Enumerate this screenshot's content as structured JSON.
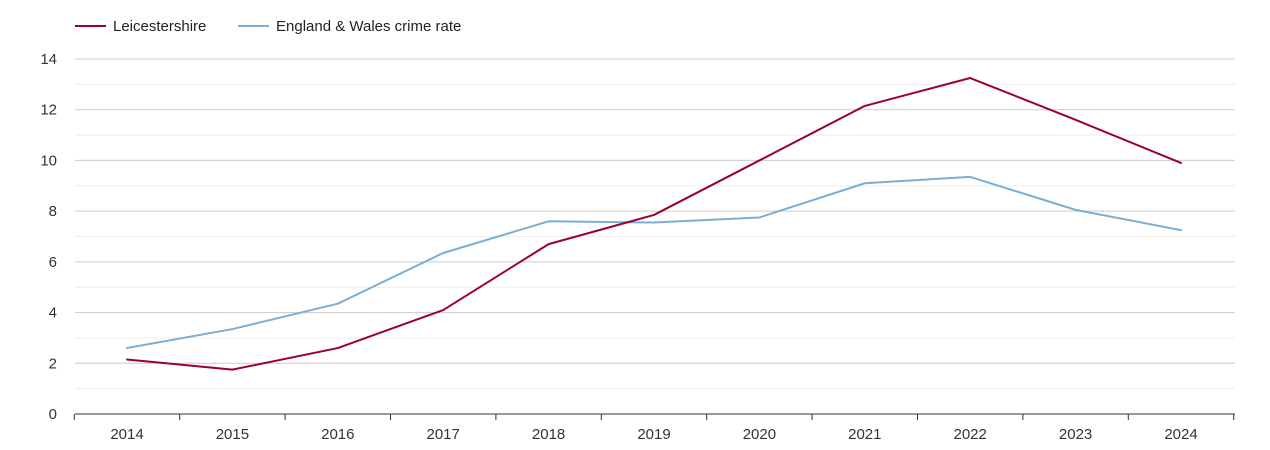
{
  "chart_data": {
    "type": "line",
    "title": "",
    "xlabel": "",
    "ylabel": "",
    "x": [
      2014,
      2015,
      2016,
      2017,
      2018,
      2019,
      2020,
      2021,
      2022,
      2023,
      2024
    ],
    "x_tick_labels": [
      "2014",
      "2015",
      "2016",
      "2017",
      "2018",
      "2019",
      "2020",
      "2021",
      "2022",
      "2023",
      "2024"
    ],
    "ylim": [
      0,
      14
    ],
    "y_ticks": [
      0,
      2,
      4,
      6,
      8,
      10,
      12,
      14
    ],
    "y_tick_labels": [
      "0",
      "2",
      "4",
      "6",
      "8",
      "10",
      "12",
      "14"
    ],
    "grid": true,
    "legend_position": "top-left",
    "series": [
      {
        "name": "Leicestershire",
        "color": "#990033",
        "values": [
          2.15,
          1.75,
          2.6,
          4.1,
          6.7,
          7.85,
          10.0,
          12.15,
          13.25,
          11.6,
          9.9
        ]
      },
      {
        "name": "England & Wales crime rate",
        "color": "#7aaed4",
        "values": [
          2.6,
          3.35,
          4.35,
          6.35,
          7.6,
          7.55,
          7.75,
          9.1,
          9.35,
          8.05,
          7.25
        ]
      }
    ]
  }
}
